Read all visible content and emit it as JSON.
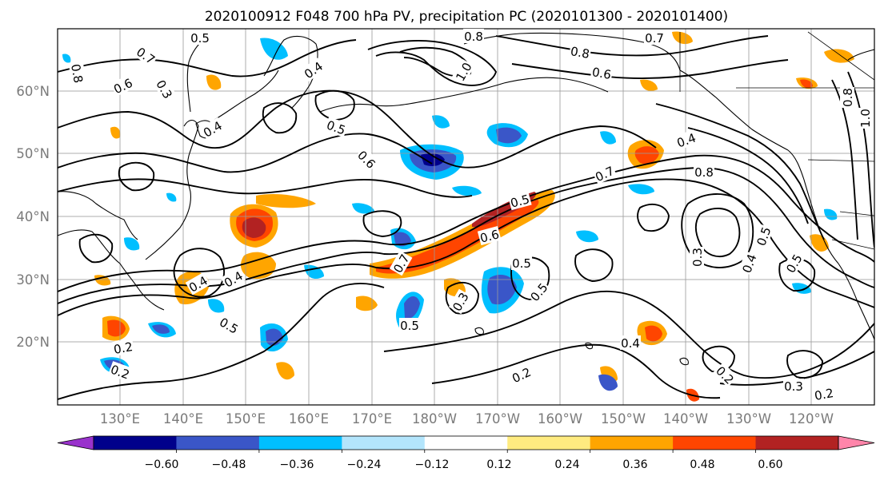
{
  "title": "2020100912 F048 700 hPa PV, precipitation PC (2020101300 - 2020101400)",
  "lat_labels": [
    "60°N",
    "50°N",
    "40°N",
    "30°N",
    "20°N"
  ],
  "lon_labels": [
    "130°E",
    "140°E",
    "150°E",
    "160°E",
    "170°E",
    "180°W",
    "170°W",
    "160°W",
    "150°W",
    "140°W",
    "130°W",
    "120°W"
  ],
  "colorbar": {
    "ticks": [
      "−0.60",
      "−0.48",
      "−0.36",
      "−0.24",
      "−0.12",
      "0.12",
      "0.24",
      "0.36",
      "0.48",
      "0.60"
    ],
    "colors": [
      "#9932CC",
      "#00008B",
      "#3A56C8",
      "#00BFFF",
      "#B3E5FC",
      "#FFFFFF",
      "#FFEB80",
      "#FFA500",
      "#FF4500",
      "#B22222",
      "#FF85AA"
    ]
  },
  "contour_labels": [
    "0.5",
    "0.7",
    "0.8",
    "0.6",
    "0.3",
    "0.4",
    "1.0",
    "0.8",
    "0.7",
    "0.8",
    "0.6",
    "0.5",
    "0.6",
    "0.4",
    "0.7",
    "0.8",
    "0.4",
    "0.5",
    "0.6",
    "0.5",
    "0.7",
    "0.3",
    "0.4",
    "0.5",
    "0.4",
    "0.5",
    "0.2",
    "0.2",
    "0.3",
    "0.5",
    "0.5",
    "0.2",
    "0.4",
    "0.2",
    "0.3",
    "0.2",
    "0.5",
    "0.4",
    "1.0",
    "0.8"
  ]
}
